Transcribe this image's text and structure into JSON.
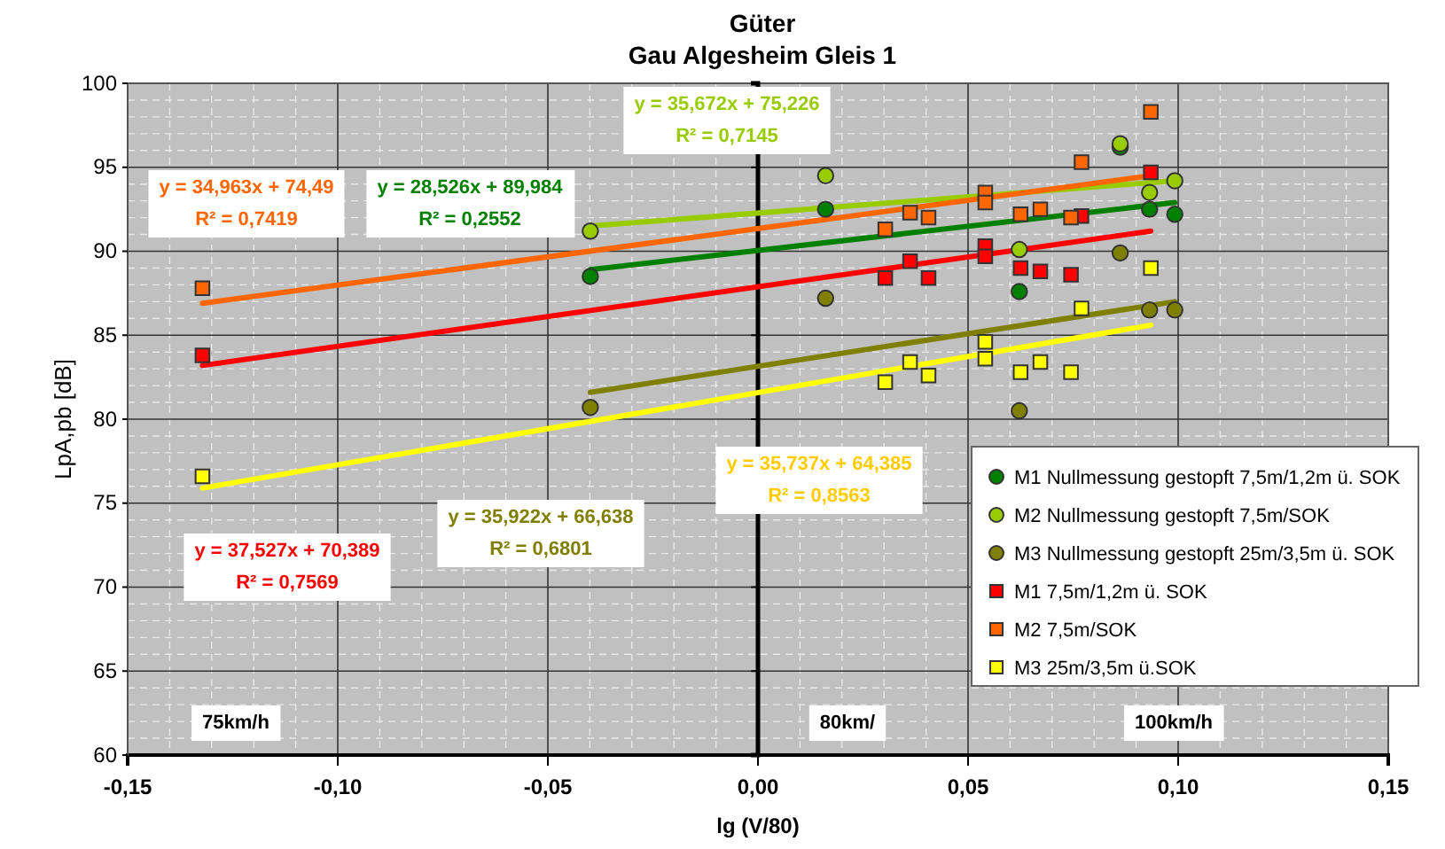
{
  "chart_data": {
    "type": "scatter",
    "title": "Güter",
    "subtitle": "Gau Algesheim Gleis 1",
    "xlabel": "lg (V/80)",
    "ylabel": "LpA,pb [dB]",
    "xlim": [
      -0.15,
      0.15
    ],
    "xticks": [
      {
        "value": -0.15,
        "label": "-0,15"
      },
      {
        "value": -0.1,
        "label": "-0,10"
      },
      {
        "value": -0.05,
        "label": "-0,05"
      },
      {
        "value": 0,
        "label": "0,00"
      },
      {
        "value": 0.05,
        "label": "0,05"
      },
      {
        "value": 0.1,
        "label": "0,10"
      },
      {
        "value": 0.15,
        "label": "0,15"
      }
    ],
    "ylim": [
      60,
      100
    ],
    "yticks": [
      60,
      65,
      70,
      75,
      80,
      85,
      90,
      95,
      100
    ],
    "grid": true,
    "legend": "bottom right",
    "series": [
      {
        "name": "M1 Nullmessung gestopft 7,5m/1,2m ü. SOK",
        "marker": "circle",
        "color": "#008000",
        "x": [
          -0.0399,
          0.0161,
          0.0622,
          0.0862,
          0.0932,
          0.0992
        ],
        "values": [
          88.5,
          92.5,
          87.6,
          96.2,
          92.5,
          92.2
        ]
      },
      {
        "name": "M2 Nullmessung gestopft 7,5m/SOK",
        "marker": "circle",
        "color": "#99cc00",
        "x": [
          -0.0399,
          0.0161,
          0.0622,
          0.0862,
          0.0932,
          0.0992
        ],
        "values": [
          91.2,
          94.5,
          90.1,
          96.4,
          93.5,
          94.2
        ]
      },
      {
        "name": "M3 Nullmessung gestopft 25m/3,5m ü. SOK",
        "marker": "circle",
        "color": "#808000",
        "x": [
          -0.0399,
          0.0161,
          0.0622,
          0.0862,
          0.0932,
          0.0992
        ],
        "values": [
          80.7,
          87.2,
          80.5,
          89.9,
          86.5,
          86.5
        ]
      },
      {
        "name": "M1 7,5m/1,2m ü. SOK",
        "marker": "square",
        "color": "#ff0000",
        "x": [
          -0.1322,
          0.0303,
          0.0362,
          0.0406,
          0.0541,
          0.0541,
          0.0625,
          0.0672,
          0.0745,
          0.077,
          0.0935
        ],
        "values": [
          83.8,
          88.4,
          89.4,
          88.4,
          90.3,
          89.7,
          89.0,
          88.8,
          88.6,
          92.1,
          94.7
        ]
      },
      {
        "name": "M2 7,5m/SOK",
        "marker": "square",
        "color": "#ff6600",
        "x": [
          -0.1322,
          0.0303,
          0.0362,
          0.0406,
          0.0541,
          0.0541,
          0.0625,
          0.0672,
          0.0745,
          0.077,
          0.0935
        ],
        "values": [
          87.8,
          91.3,
          92.3,
          92.0,
          93.5,
          92.9,
          92.2,
          92.5,
          92.0,
          95.3,
          98.3
        ]
      },
      {
        "name": "M3 25m/3,5m ü.SOK",
        "marker": "square",
        "color": "#ffff00",
        "x": [
          -0.1322,
          0.0303,
          0.0362,
          0.0406,
          0.0541,
          0.0541,
          0.0625,
          0.0672,
          0.0745,
          0.077,
          0.0935
        ],
        "values": [
          76.6,
          82.2,
          83.4,
          82.6,
          84.6,
          83.6,
          82.8,
          83.4,
          82.8,
          86.6,
          89.0
        ]
      },
      {
        "type": "line",
        "marker": "none",
        "color": "#008000",
        "x": [
          -0.0399,
          0.0992
        ],
        "values": [
          88.9,
          92.9
        ]
      },
      {
        "type": "line",
        "marker": "none",
        "color": "#99cc00",
        "x": [
          -0.0399,
          0.0992
        ],
        "values": [
          91.5,
          94.2
        ]
      },
      {
        "type": "line",
        "marker": "none",
        "color": "#808000",
        "x": [
          -0.0399,
          0.0992
        ],
        "values": [
          81.6,
          87.0
        ]
      },
      {
        "type": "line",
        "marker": "none",
        "color": "#ff0000",
        "x": [
          -0.1322,
          0.0935
        ],
        "values": [
          83.2,
          91.2
        ]
      },
      {
        "type": "line",
        "marker": "none",
        "color": "#ff6600",
        "x": [
          -0.1322,
          0.0935
        ],
        "values": [
          86.9,
          94.5
        ]
      },
      {
        "type": "line",
        "marker": "none",
        "color": "#ffff00",
        "x": [
          -0.1322,
          0.0935
        ],
        "values": [
          75.9,
          85.6
        ]
      }
    ],
    "annotations": [
      "y = 34,963x + 74,49\nR² = 0,7419",
      "y = 28,526x + 89,984\nR² = 0,2552",
      "y = 35,672x + 75,226\nR² = 0,7145",
      "y = 37,527x + 70,389\nR² = 0,7569",
      "y = 35,922x + 66,638\nR² = 0,6801",
      "y = 35,737x + 64,385\nR² = 0,8563",
      "75km/h",
      "80km/",
      "100km/h"
    ]
  }
}
